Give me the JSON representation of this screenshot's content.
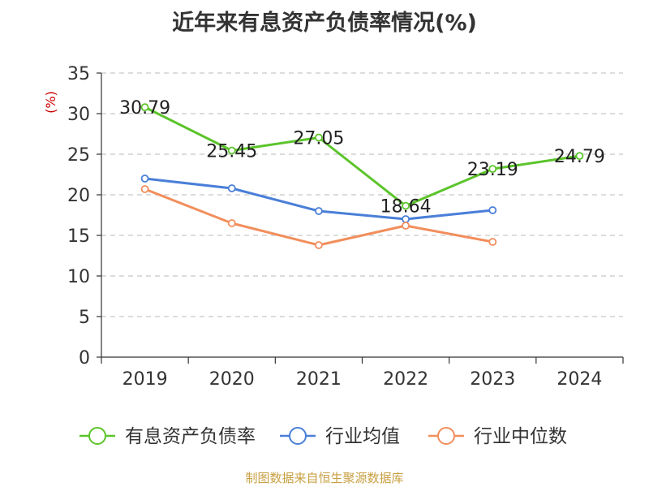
{
  "chart_data": {
    "type": "line",
    "title": "近年来有息资产负债率情况(%)",
    "ylabel": "(%)",
    "ylim": [
      0,
      35
    ],
    "yticks": [
      0,
      5,
      10,
      15,
      20,
      25,
      30,
      35
    ],
    "categories": [
      "2019",
      "2020",
      "2021",
      "2022",
      "2023",
      "2024"
    ],
    "grid": true,
    "legend_position": "bottom",
    "series": [
      {
        "name": "有息资产负债率",
        "color": "#5cc42b",
        "values": [
          30.79,
          25.45,
          27.05,
          18.64,
          23.19,
          24.79
        ],
        "labels": [
          "30.79",
          "25.45",
          "27.05",
          "18.64",
          "23.19",
          "24.79"
        ]
      },
      {
        "name": "行业均值",
        "color": "#4a7fd8",
        "values": [
          22.0,
          20.8,
          18.0,
          17.0,
          18.1,
          null
        ]
      },
      {
        "name": "行业中位数",
        "color": "#f28e5c",
        "values": [
          20.7,
          16.5,
          13.8,
          16.2,
          14.2,
          null
        ]
      }
    ],
    "source": "制图数据来自恒生聚源数据库"
  }
}
